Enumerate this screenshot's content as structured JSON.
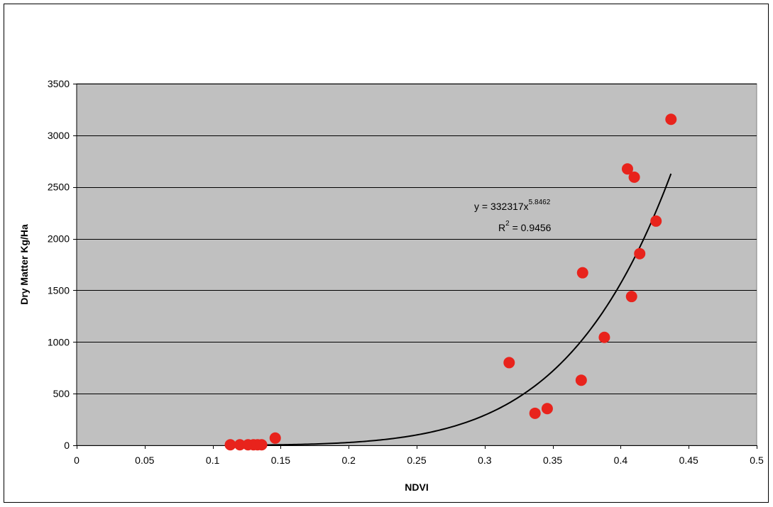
{
  "chart_data": {
    "type": "scatter",
    "title": "",
    "xlabel": "NDVI",
    "ylabel": "Dry Matter Kg/Ha",
    "xlim": [
      0,
      0.5
    ],
    "ylim": [
      0,
      3500
    ],
    "x_ticks": [
      0,
      0.05,
      0.1,
      0.15,
      0.2,
      0.25,
      0.3,
      0.35,
      0.4,
      0.45,
      0.5
    ],
    "x_tick_labels": [
      "0",
      "0.05",
      "0.1",
      "0.15",
      "0.2",
      "0.25",
      "0.3",
      "0.35",
      "0.4",
      "0.45",
      "0.5"
    ],
    "y_ticks": [
      0,
      500,
      1000,
      1500,
      2000,
      2500,
      3000,
      3500
    ],
    "y_tick_labels": [
      "0",
      "500",
      "1000",
      "1500",
      "2000",
      "2500",
      "3000",
      "3500"
    ],
    "grid": "horizontal",
    "legend": "none",
    "colors": {
      "plot_background": "#c0c0c0",
      "marker": "#e8231c",
      "trendline": "#000000",
      "gridline": "#000000"
    },
    "series": [
      {
        "x": [
          0.113,
          0.12,
          0.126,
          0.13,
          0.133,
          0.136,
          0.146,
          0.318,
          0.337,
          0.346,
          0.371,
          0.372,
          0.388,
          0.405,
          0.408,
          0.41,
          0.414,
          0.426,
          0.437
        ],
        "y": [
          5,
          5,
          5,
          5,
          5,
          5,
          70,
          800,
          310,
          355,
          630,
          1670,
          1045,
          2675,
          1440,
          2595,
          1855,
          2170,
          3155
        ]
      }
    ],
    "trendline": {
      "type": "power",
      "coefficient": 332317,
      "exponent": 5.8462,
      "x_range": [
        0.113,
        0.437
      ],
      "equation_text_main": "y = 332317x",
      "equation_text_exp": "5.8462",
      "r2_text_prefix": "R",
      "r2_text_exp": "2",
      "r2_text_value": " = 0.9456"
    }
  }
}
